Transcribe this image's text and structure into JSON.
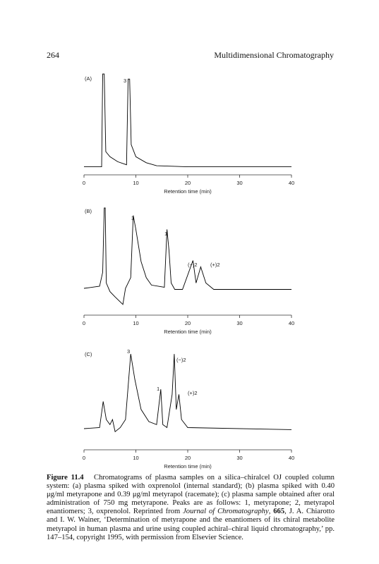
{
  "header": {
    "page_number": "264",
    "running_title": "Multidimensional Chromatography"
  },
  "chart_data": [
    {
      "type": "line",
      "panel_label": "(A)",
      "x_label": "Retention time (min)",
      "xlim": [
        0,
        40
      ],
      "xticks": [
        0,
        10,
        20,
        30,
        40
      ],
      "ylim": [
        0,
        100
      ],
      "color": "#000000",
      "annotations": [
        "3"
      ],
      "x": [
        0,
        3.4,
        3.6,
        3.9,
        4.2,
        5,
        6.5,
        8.2,
        8.5,
        8.8,
        9.1,
        10,
        12,
        14,
        20,
        40
      ],
      "values": [
        8,
        8,
        100,
        100,
        23,
        18,
        13,
        10,
        95,
        95,
        30,
        18,
        12,
        9,
        8,
        8
      ]
    },
    {
      "type": "line",
      "panel_label": "(B)",
      "x_label": "Retention time (min)",
      "xlim": [
        0,
        40
      ],
      "xticks": [
        0,
        10,
        20,
        30,
        40
      ],
      "ylim": [
        0,
        100
      ],
      "color": "#000000",
      "annotations": [
        "3",
        "1",
        "(−)2",
        "(+)2"
      ],
      "x": [
        0,
        3,
        3.6,
        3.9,
        4.1,
        4.3,
        5,
        6,
        7.5,
        8,
        9,
        9.5,
        10,
        11,
        12,
        13,
        15.5,
        16,
        16.4,
        16.8,
        17.5,
        19,
        21,
        21.6,
        22.5,
        23.5,
        25,
        40
      ],
      "values": [
        25,
        27,
        40,
        100,
        100,
        30,
        22,
        17,
        10,
        25,
        35,
        93,
        80,
        50,
        35,
        28,
        26,
        80,
        60,
        30,
        24,
        24,
        51,
        30,
        45,
        30,
        24,
        24
      ]
    },
    {
      "type": "line",
      "panel_label": "(C)",
      "x_label": "Retention time (min)",
      "xlim": [
        0,
        40
      ],
      "xticks": [
        0,
        10,
        20,
        30,
        40
      ],
      "ylim": [
        0,
        100
      ],
      "color": "#000000",
      "annotations": [
        "3",
        "(−)2",
        "1",
        "(+)2"
      ],
      "x": [
        0,
        3,
        3.7,
        4.3,
        5,
        5.5,
        6,
        7,
        8,
        9,
        9.8,
        11,
        12.5,
        14,
        14.8,
        15.2,
        16,
        17,
        17.4,
        17.8,
        18.3,
        18.8,
        20,
        40
      ],
      "values": [
        21,
        22,
        48,
        30,
        25,
        30,
        18,
        22,
        30,
        95,
        70,
        40,
        28,
        25,
        60,
        25,
        22,
        55,
        95,
        40,
        55,
        30,
        22,
        20
      ]
    }
  ],
  "caption": {
    "label": "Figure 11.4",
    "parts": [
      "Chromatograms of plasma samples on a silica–chiralcel OJ coupled column system: (a) plasma spiked with oxprenolol (internal standard); (b) plasma spiked with 0.40 μg/ml metyrapone and 0.39 μg/ml metyrapol (racemate); (c) plasma sample obtained after oral administration of 750 mg metyrapone. Peaks are as follows: 1, metyrapone; 2, metyrapol enantiomers; 3, oxprenolol. Reprinted from ",
      "Journal of Chromatography",
      ", ",
      "665",
      ", J. A. Chiarotto and I. W. Wainer, ‘Determination of metyrapone and the enantiomers of its chiral metabolite metyrapol in human plasma and urine using coupled achiral–chiral liquid chromatography,’ pp. 147–154, copyright 1995, with permission from Elsevier Science."
    ]
  }
}
